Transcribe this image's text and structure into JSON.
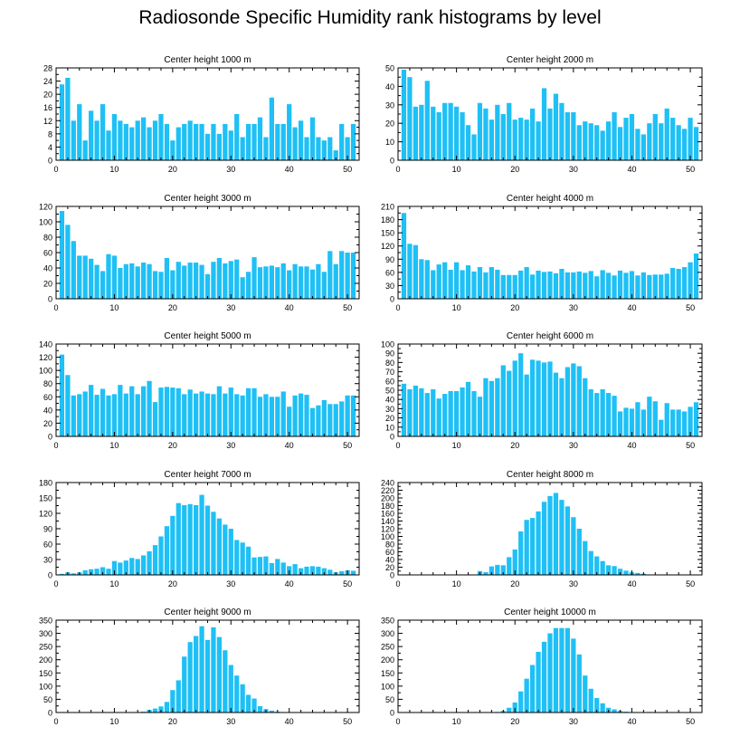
{
  "title": "Radiosonde Specific Humidity rank histograms by level",
  "colors": {
    "bar": "#1ec0f5",
    "axis": "#000000"
  },
  "chart_data": [
    {
      "type": "bar",
      "title": "Center height 1000 m",
      "xlim": [
        0,
        52
      ],
      "ylim": [
        0,
        28
      ],
      "yticks": [
        0,
        4,
        8,
        12,
        16,
        20,
        24,
        28
      ],
      "xticks": [
        0,
        10,
        20,
        30,
        40,
        50
      ],
      "values": [
        23,
        25,
        12,
        17,
        6,
        15,
        12,
        17,
        9,
        14,
        12,
        11,
        10,
        12,
        13,
        10,
        12,
        14,
        11,
        6,
        10,
        11,
        12,
        11,
        11,
        8,
        11,
        8,
        11,
        9,
        14,
        7,
        11,
        11,
        13,
        7,
        19,
        11,
        11,
        17,
        10,
        12,
        7,
        13,
        7,
        6,
        7,
        3,
        11,
        7,
        11
      ]
    },
    {
      "type": "bar",
      "title": "Center height 2000 m",
      "xlim": [
        0,
        52
      ],
      "ylim": [
        0,
        50
      ],
      "yticks": [
        0,
        10,
        20,
        30,
        40,
        50
      ],
      "xticks": [
        0,
        10,
        20,
        30,
        40,
        50
      ],
      "values": [
        49,
        45,
        29,
        30,
        43,
        29,
        26,
        31,
        31,
        29,
        26,
        19,
        14,
        31,
        28,
        22,
        30,
        25,
        31,
        22,
        23,
        22,
        28,
        21,
        39,
        28,
        36,
        31,
        26,
        26,
        19,
        21,
        20,
        19,
        16,
        21,
        26,
        18,
        23,
        25,
        17,
        14,
        20,
        25,
        20,
        28,
        23,
        19,
        17,
        23,
        18
      ]
    },
    {
      "type": "bar",
      "title": "Center height 3000 m",
      "xlim": [
        0,
        52
      ],
      "ylim": [
        0,
        120
      ],
      "yticks": [
        0,
        20,
        40,
        60,
        80,
        100,
        120
      ],
      "xticks": [
        0,
        10,
        20,
        30,
        40,
        50
      ],
      "values": [
        114,
        96,
        75,
        56,
        56,
        52,
        44,
        36,
        58,
        56,
        40,
        45,
        46,
        42,
        47,
        45,
        36,
        35,
        53,
        37,
        48,
        43,
        47,
        47,
        44,
        32,
        48,
        53,
        46,
        49,
        51,
        28,
        35,
        54,
        41,
        42,
        43,
        41,
        46,
        37,
        45,
        42,
        42,
        38,
        45,
        35,
        62,
        45,
        62,
        60,
        60
      ]
    },
    {
      "type": "bar",
      "title": "Center height 4000 m",
      "xlim": [
        0,
        52
      ],
      "ylim": [
        0,
        210
      ],
      "yticks": [
        0,
        30,
        60,
        90,
        120,
        150,
        180,
        210
      ],
      "xticks": [
        0,
        10,
        20,
        30,
        40,
        50
      ],
      "values": [
        195,
        125,
        122,
        90,
        88,
        65,
        78,
        83,
        66,
        83,
        65,
        76,
        62,
        72,
        60,
        72,
        66,
        54,
        54,
        54,
        64,
        72,
        55,
        64,
        61,
        62,
        58,
        68,
        60,
        60,
        62,
        59,
        63,
        51,
        65,
        59,
        53,
        64,
        59,
        63,
        53,
        60,
        54,
        55,
        55,
        57,
        70,
        68,
        72,
        83,
        103
      ]
    },
    {
      "type": "bar",
      "title": "Center height 5000 m",
      "xlim": [
        0,
        52
      ],
      "ylim": [
        0,
        140
      ],
      "yticks": [
        0,
        20,
        40,
        60,
        80,
        100,
        120,
        140
      ],
      "xticks": [
        0,
        10,
        20,
        30,
        40,
        50
      ],
      "values": [
        124,
        93,
        62,
        64,
        68,
        78,
        63,
        72,
        62,
        64,
        78,
        65,
        76,
        64,
        76,
        84,
        52,
        74,
        75,
        74,
        73,
        64,
        71,
        65,
        68,
        65,
        64,
        76,
        65,
        74,
        64,
        62,
        73,
        73,
        60,
        64,
        60,
        60,
        68,
        45,
        62,
        65,
        63,
        43,
        47,
        55,
        49,
        49,
        53,
        62,
        62
      ]
    },
    {
      "type": "bar",
      "title": "Center height 6000 m",
      "xlim": [
        0,
        52
      ],
      "ylim": [
        0,
        100
      ],
      "yticks": [
        0,
        10,
        20,
        30,
        40,
        50,
        60,
        70,
        80,
        90,
        100
      ],
      "xticks": [
        0,
        10,
        20,
        30,
        40,
        50
      ],
      "values": [
        57,
        51,
        55,
        52,
        47,
        51,
        41,
        46,
        49,
        49,
        53,
        59,
        49,
        43,
        63,
        60,
        63,
        77,
        71,
        82,
        90,
        67,
        83,
        82,
        80,
        81,
        69,
        63,
        75,
        79,
        76,
        63,
        51,
        47,
        51,
        47,
        44,
        27,
        31,
        30,
        37,
        29,
        43,
        38,
        18,
        36,
        29,
        29,
        27,
        32,
        37
      ]
    },
    {
      "type": "bar",
      "title": "Center height 7000 m",
      "xlim": [
        0,
        52
      ],
      "ylim": [
        0,
        180
      ],
      "yticks": [
        0,
        30,
        60,
        90,
        120,
        150,
        180
      ],
      "xticks": [
        0,
        10,
        20,
        30,
        40,
        50
      ],
      "values": [
        2,
        5,
        3,
        5,
        9,
        11,
        12,
        15,
        12,
        27,
        24,
        28,
        33,
        31,
        38,
        46,
        58,
        75,
        95,
        115,
        140,
        136,
        138,
        136,
        156,
        135,
        123,
        110,
        98,
        90,
        68,
        63,
        55,
        34,
        35,
        36,
        23,
        31,
        24,
        17,
        21,
        13,
        16,
        17,
        16,
        13,
        10,
        5,
        7,
        9,
        8
      ]
    },
    {
      "type": "bar",
      "title": "Center height 8000 m",
      "xlim": [
        0,
        52
      ],
      "ylim": [
        0,
        240
      ],
      "yticks": [
        0,
        20,
        40,
        60,
        80,
        100,
        120,
        140,
        160,
        180,
        200,
        220,
        240
      ],
      "xticks": [
        0,
        10,
        20,
        30,
        40,
        50
      ],
      "values": [
        0,
        0,
        0,
        0,
        0,
        0,
        0,
        0,
        0,
        0,
        0,
        0,
        0,
        10,
        7,
        22,
        26,
        25,
        46,
        66,
        113,
        143,
        148,
        165,
        190,
        205,
        213,
        195,
        178,
        150,
        120,
        88,
        62,
        48,
        36,
        25,
        23,
        16,
        11,
        7,
        5,
        3,
        1,
        0,
        0,
        0,
        0,
        0,
        0,
        0,
        0
      ]
    },
    {
      "type": "bar",
      "title": "Center height 9000 m",
      "xlim": [
        0,
        52
      ],
      "ylim": [
        0,
        350
      ],
      "yticks": [
        0,
        50,
        100,
        150,
        200,
        250,
        300,
        350
      ],
      "xticks": [
        0,
        10,
        20,
        30,
        40,
        50
      ],
      "values": [
        0,
        0,
        0,
        0,
        0,
        0,
        0,
        0,
        0,
        0,
        0,
        0,
        0,
        0,
        3,
        10,
        15,
        23,
        40,
        85,
        122,
        212,
        267,
        290,
        327,
        275,
        323,
        286,
        236,
        180,
        140,
        107,
        67,
        53,
        24,
        13,
        7,
        3,
        0,
        0,
        0,
        0,
        0,
        0,
        0,
        0,
        0,
        0,
        0,
        0,
        0
      ]
    },
    {
      "type": "bar",
      "title": "Center height 10000 m",
      "xlim": [
        0,
        52
      ],
      "ylim": [
        0,
        350
      ],
      "yticks": [
        0,
        50,
        100,
        150,
        200,
        250,
        300,
        350
      ],
      "xticks": [
        0,
        10,
        20,
        30,
        40,
        50
      ],
      "values": [
        0,
        0,
        0,
        0,
        0,
        0,
        0,
        0,
        0,
        0,
        0,
        0,
        0,
        0,
        0,
        0,
        2,
        6,
        18,
        38,
        80,
        128,
        180,
        230,
        268,
        300,
        320,
        320,
        320,
        280,
        220,
        140,
        90,
        55,
        35,
        18,
        12,
        6,
        3,
        1,
        0,
        0,
        2,
        1,
        0,
        0,
        0,
        0,
        0,
        0,
        0
      ]
    }
  ]
}
